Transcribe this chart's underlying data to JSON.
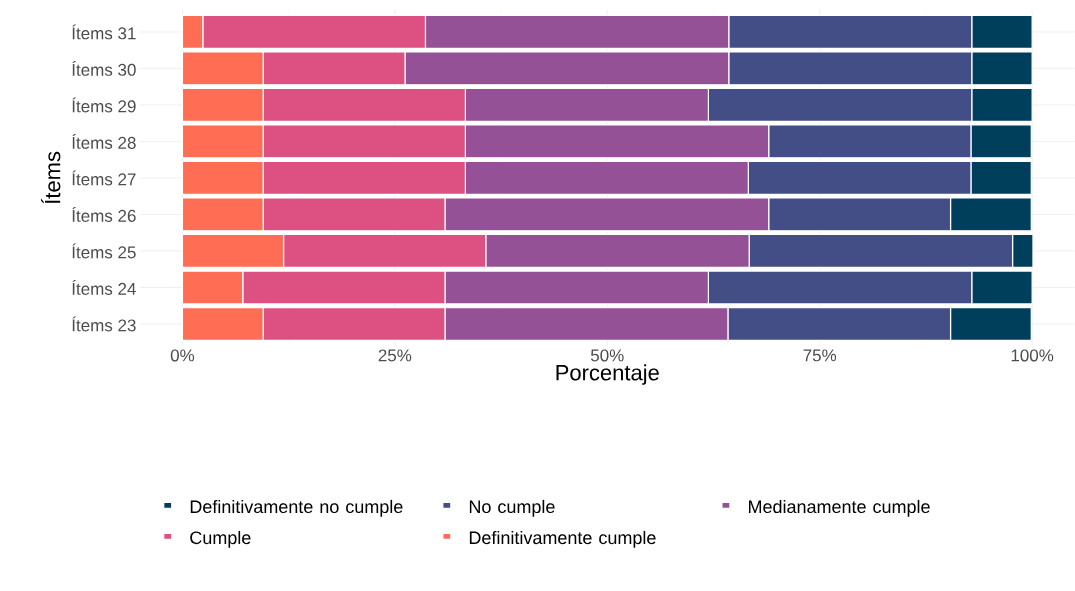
{
  "chart_data": {
    "type": "bar",
    "orientation": "horizontal",
    "stacked": true,
    "xlabel": "Porcentaje",
    "ylabel": "Ítems",
    "categories": [
      "Ítems 31",
      "Ítems 30",
      "Ítems 29",
      "Ítems 28",
      "Ítems 27",
      "Ítems 26",
      "Ítems 25",
      "Ítems 24",
      "Ítems 23"
    ],
    "series": [
      {
        "name": "Definitivamente cumple",
        "color": "#ff6e54",
        "values": [
          2.4,
          9.5,
          9.5,
          9.5,
          9.5,
          9.5,
          11.9,
          7.1,
          9.5
        ]
      },
      {
        "name": "Cumple",
        "color": "#dd5182",
        "values": [
          26.2,
          16.7,
          23.8,
          23.8,
          23.8,
          21.4,
          23.8,
          23.8,
          21.4
        ]
      },
      {
        "name": "Medianamente cumple",
        "color": "#955196",
        "values": [
          35.7,
          38.1,
          28.6,
          35.7,
          33.3,
          38.1,
          31.0,
          31.0,
          33.3
        ]
      },
      {
        "name": "No cumple",
        "color": "#444e86",
        "values": [
          28.6,
          28.6,
          31.0,
          23.8,
          26.2,
          21.4,
          31.0,
          31.0,
          26.2
        ]
      },
      {
        "name": "Definitivamente no cumple",
        "color": "#003f5c",
        "values": [
          7.1,
          7.1,
          7.1,
          7.1,
          7.1,
          9.5,
          2.4,
          7.1,
          9.5
        ]
      }
    ],
    "xlim": [
      -5,
      105
    ],
    "xticks": [
      {
        "value": 0,
        "label": "0%"
      },
      {
        "value": 25,
        "label": "25%"
      },
      {
        "value": 50,
        "label": "50%"
      },
      {
        "value": 75,
        "label": "75%"
      },
      {
        "value": 100,
        "label": "100%"
      }
    ],
    "grid": true,
    "legend": "bottom"
  }
}
